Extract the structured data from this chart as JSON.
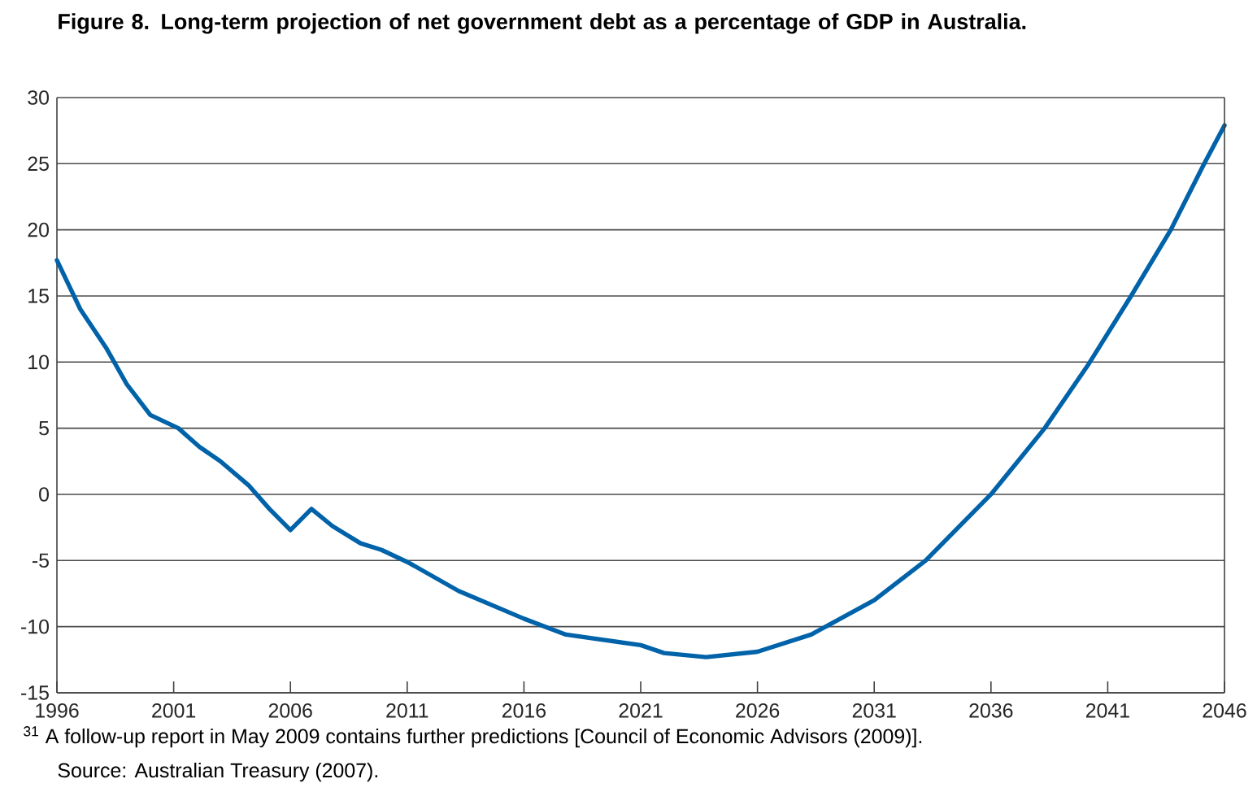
{
  "chart_data": {
    "type": "line",
    "title": "Figure 8. Long-term projection of net government debt as a percentage of GDP in Australia.",
    "x": [
      1996,
      1997,
      1998.1,
      1999,
      2000,
      2001.2,
      2002.1,
      2003,
      2004.2,
      2005.1,
      2006,
      2006.9,
      2007.8,
      2009,
      2009.9,
      2011.1,
      2013.2,
      2016,
      2017.8,
      2021,
      2022,
      2023.8,
      2026,
      2028.3,
      2031,
      2033.2,
      2036,
      2038.3,
      2040.2,
      2042,
      2043.7,
      2045.1,
      2046
    ],
    "series": [
      {
        "color": "#0062a9",
        "values": [
          17.7,
          14.0,
          11.1,
          8.3,
          6.0,
          5.0,
          3.6,
          2.5,
          0.7,
          -1.1,
          -2.7,
          -1.1,
          -2.4,
          -3.7,
          -4.2,
          -5.2,
          -7.3,
          -9.4,
          -10.6,
          -11.4,
          -12.0,
          -12.3,
          -11.9,
          -10.6,
          -8.0,
          -5.0,
          0,
          5.0,
          9.9,
          15.0,
          20.0,
          24.9,
          27.9
        ]
      }
    ],
    "xlim": [
      1996,
      2046
    ],
    "xticks": [
      1996,
      2001,
      2006,
      2011,
      2016,
      2021,
      2026,
      2031,
      2036,
      2041,
      2046
    ],
    "ylim": [
      -15,
      30
    ],
    "yticks": [
      -15,
      -10,
      -5,
      0,
      5,
      10,
      15,
      20,
      25,
      30
    ],
    "grid": "y",
    "line_style": "solid",
    "annotations": [
      "$^{31}$ A follow-up report in May 2009 contains further predictions [Council of Economic Advisors (2009)].",
      "Source: Australian Treasury (2007)."
    ]
  }
}
